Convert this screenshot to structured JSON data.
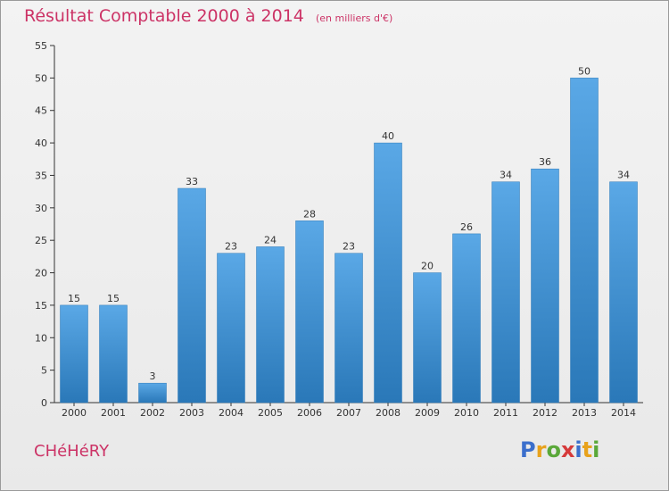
{
  "chart_data": {
    "type": "bar",
    "title": "Résultat Comptable 2000 à 2014",
    "subtitle": "(en milliers d'€)",
    "categories": [
      "2000",
      "2001",
      "2002",
      "2003",
      "2004",
      "2005",
      "2006",
      "2007",
      "2008",
      "2009",
      "2010",
      "2011",
      "2012",
      "2013",
      "2014"
    ],
    "values": [
      15,
      15,
      3,
      33,
      23,
      24,
      28,
      23,
      40,
      20,
      26,
      34,
      36,
      50,
      34
    ],
    "ylim": [
      0,
      55
    ],
    "yticks": [
      0,
      5,
      10,
      15,
      20,
      25,
      30,
      35,
      40,
      45,
      50,
      55
    ],
    "grid": false,
    "legend": "none"
  },
  "footer": {
    "commune": "CHéHéRY"
  },
  "logo": {
    "letters": [
      "P",
      "r",
      "o",
      "x",
      "i",
      "t",
      "i"
    ],
    "colors": [
      "#3b6fcc",
      "#e8a21c",
      "#5aa839",
      "#d63a3a",
      "#3b6fcc",
      "#e8a21c",
      "#5aa839"
    ]
  },
  "colors": {
    "title": "#cc3366",
    "bar_top": "#5aa8e6",
    "bar_bottom": "#2a78b8",
    "axis": "#333333"
  }
}
